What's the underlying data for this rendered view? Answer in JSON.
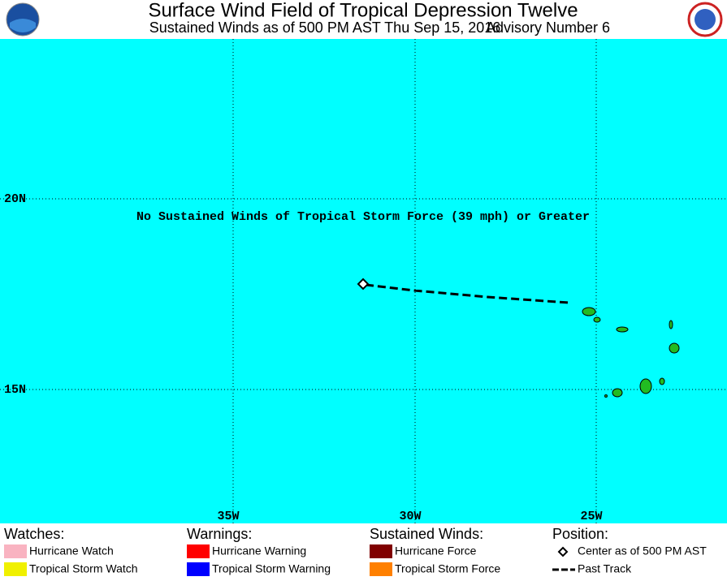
{
  "header": {
    "title": "Surface Wind Field of Tropical Depression Twelve",
    "subtitle": "Sustained Winds as of 500 PM AST Thu Sep 15, 2016",
    "advisory": "Advisory Number 6"
  },
  "map": {
    "lat_labels": [
      "20N",
      "15N"
    ],
    "lon_labels": [
      "35W",
      "30W",
      "25W"
    ],
    "note": "No Sustained Winds of Tropical Storm Force (39 mph) or Greater"
  },
  "legend": {
    "watches": {
      "heading": "Watches:",
      "items": [
        "Hurricane Watch",
        "Tropical Storm Watch"
      ]
    },
    "warnings": {
      "heading": "Warnings:",
      "items": [
        "Hurricane Warning",
        "Tropical Storm Warning"
      ]
    },
    "winds": {
      "heading": "Sustained Winds:",
      "items": [
        "Hurricane Force",
        "Tropical Storm Force"
      ]
    },
    "position": {
      "heading": "Position:",
      "items": [
        "Center as of 500 PM AST",
        "Past Track"
      ]
    }
  }
}
